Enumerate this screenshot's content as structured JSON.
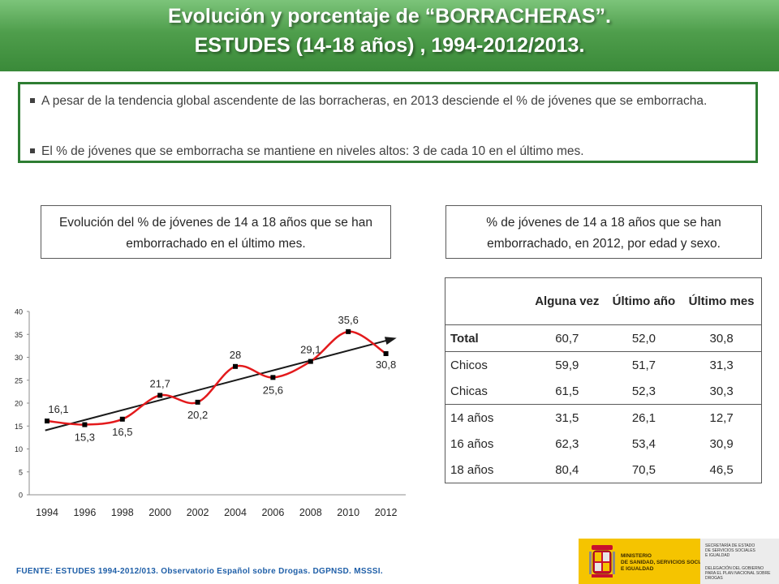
{
  "header": {
    "title_line1": "Evolución y porcentaje de “BORRACHERAS”.",
    "title_line2": "ESTUDES (14-18 años) , 1994-2012/2013."
  },
  "bullets": [
    "A pesar de la tendencia global ascendente de las borracheras, en 2013 desciende el % de jóvenes que se emborracha.",
    "El % de jóvenes que se emborracha se mantiene en niveles altos: 3 de cada 10 en el último mes."
  ],
  "captions": {
    "left": "Evolución del % de jóvenes de 14 a 18 años que se han emborrachado en el último mes.",
    "right": "% de jóvenes de 14 a 18 años que se han emborrachado, en 2012, por edad y sexo."
  },
  "chart_data": [
    {
      "type": "line",
      "title": "",
      "xlabel": "",
      "ylabel": "",
      "categories": [
        "1994",
        "1996",
        "1998",
        "2000",
        "2002",
        "2004",
        "2006",
        "2008",
        "2010",
        "2012"
      ],
      "series": [
        {
          "values": [
            16.1,
            15.3,
            16.5,
            21.7,
            20.2,
            28,
            25.6,
            29.1,
            35.6,
            30.8
          ]
        }
      ],
      "data_labels": [
        "16,1",
        "15,3",
        "16,5",
        "21,7",
        "20,2",
        "28",
        "25,6",
        "29,1",
        "35,6",
        "30,8"
      ],
      "trendline": true,
      "yticks": [
        "0",
        "5",
        "10",
        "15",
        "20",
        "25",
        "30",
        "35",
        "40"
      ],
      "ylim": [
        0,
        40
      ],
      "grid": false,
      "colors": {
        "line": "#e31a1c",
        "trend": "#1a1a1a",
        "marker": "#000000"
      }
    },
    {
      "type": "table",
      "columns": [
        "",
        "Alguna vez",
        "Último año",
        "Último mes"
      ],
      "rows": [
        {
          "label": "Total",
          "values": [
            "60,7",
            "52,0",
            "30,8"
          ]
        },
        {
          "label": "Chicos",
          "values": [
            "59,9",
            "51,7",
            "31,3"
          ]
        },
        {
          "label": "Chicas",
          "values": [
            "61,5",
            "52,3",
            "30,3"
          ]
        },
        {
          "label": "14 años",
          "values": [
            "31,5",
            "26,1",
            "12,7"
          ]
        },
        {
          "label": "16 años",
          "values": [
            "62,3",
            "53,4",
            "30,9"
          ]
        },
        {
          "label": "18 años",
          "values": [
            "80,4",
            "70,5",
            "46,5"
          ]
        }
      ]
    }
  ],
  "footer": {
    "source": "FUENTE: ESTUDES 1994-2012/013. Observatorio Español sobre Drogas. DGPNSD. MSSSI.",
    "logo_ministry": [
      "MINISTERIO",
      "DE SANIDAD, SERVICIOS SOCIALES",
      "E IGUALDAD"
    ],
    "logo_right": [
      "SECRETARÍA DE ESTADO",
      "DE SERVICIOS SOCIALES",
      "E IGUALDAD",
      "DELEGACIÓN DEL GOBIERNO",
      "PARA EL PLAN NACIONAL SOBRE DROGAS"
    ]
  }
}
